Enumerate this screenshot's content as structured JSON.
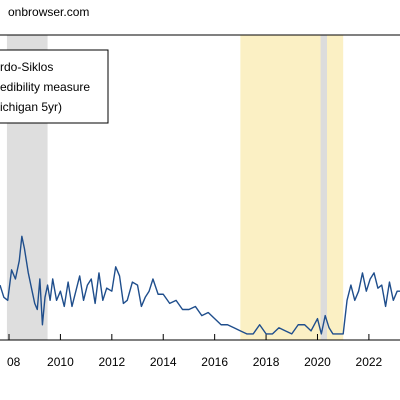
{
  "chart_data": {
    "type": "line",
    "source": "onbrowser.com",
    "legend_lines": [
      "rdo-Siklos",
      "edibility measure",
      "ichigan 5yr)"
    ],
    "xlim": [
      2007.65,
      2023.21
    ],
    "ylim": [
      0,
      100
    ],
    "xticks": [
      {
        "value": 2008,
        "label": "08"
      },
      2010,
      2012,
      2014,
      2016,
      2018,
      2020,
      2022
    ],
    "shaded_regions": [
      {
        "start": 2007.92,
        "end": 2009.5,
        "color": "#dedede"
      },
      {
        "start": 2017.0,
        "end": 2021.0,
        "color": "#fbf0c4"
      },
      {
        "start": 2020.12,
        "end": 2020.37,
        "color": "#dcdcdc"
      }
    ],
    "series": [
      {
        "name": "rdo-Siklos",
        "color": "#1f4e8c",
        "x": [
          2007.65,
          2007.8,
          2007.95,
          2008.1,
          2008.25,
          2008.4,
          2008.5,
          2008.6,
          2008.75,
          2008.9,
          2009.0,
          2009.1,
          2009.2,
          2009.3,
          2009.4,
          2009.5,
          2009.6,
          2009.7,
          2009.85,
          2010.0,
          2010.15,
          2010.3,
          2010.45,
          2010.6,
          2010.75,
          2010.9,
          2011.05,
          2011.2,
          2011.35,
          2011.5,
          2011.65,
          2011.8,
          2012.0,
          2012.15,
          2012.3,
          2012.45,
          2012.6,
          2012.8,
          2013.0,
          2013.15,
          2013.3,
          2013.45,
          2013.6,
          2013.8,
          2014.0,
          2014.25,
          2014.5,
          2014.75,
          2015.0,
          2015.25,
          2015.5,
          2015.75,
          2016.0,
          2016.25,
          2016.5,
          2016.75,
          2017.0,
          2017.25,
          2017.5,
          2017.75,
          2018.0,
          2018.25,
          2018.5,
          2018.75,
          2019.0,
          2019.25,
          2019.5,
          2019.75,
          2020.0,
          2020.15,
          2020.3,
          2020.45,
          2020.6,
          2020.8,
          2021.0,
          2021.15,
          2021.3,
          2021.45,
          2021.6,
          2021.75,
          2021.9,
          2022.05,
          2022.2,
          2022.35,
          2022.5,
          2022.65,
          2022.8,
          2022.95,
          2023.1,
          2023.21
        ],
        "values": [
          18,
          14,
          13,
          23,
          20,
          26,
          34,
          30,
          22,
          16,
          12,
          10,
          20,
          5,
          14,
          18,
          13,
          20,
          13,
          16,
          11,
          19,
          11,
          16,
          21,
          13,
          18,
          20,
          12,
          22,
          13,
          17,
          16,
          24,
          21,
          12,
          13,
          19,
          18,
          11,
          14,
          16,
          20,
          15,
          15,
          12,
          13,
          10,
          10,
          11,
          8,
          9,
          7,
          5,
          5,
          4,
          3,
          2,
          2,
          5,
          2,
          2,
          4,
          3,
          2,
          5,
          5,
          3,
          7,
          2,
          8,
          4,
          2,
          2,
          2,
          13,
          18,
          13,
          16,
          22,
          16,
          20,
          22,
          17,
          18,
          11,
          19,
          13,
          16,
          16
        ]
      }
    ]
  }
}
